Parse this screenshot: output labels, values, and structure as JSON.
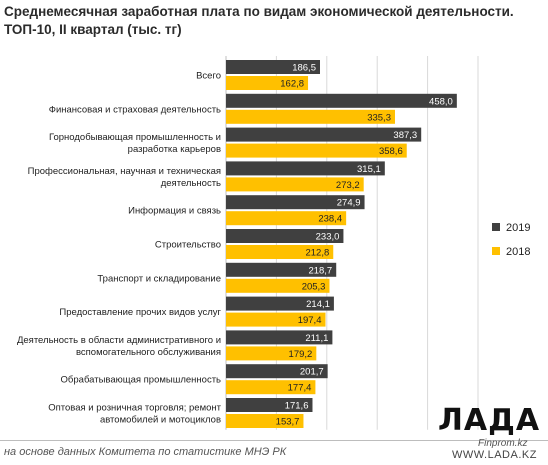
{
  "title": "Среднемесячная заработная плата  по видам экономической деятельности. ТОП-10,  II квартал (тыс.  тг)",
  "source": "на основе данных  Комитета по статистике МНЭ РК",
  "logo": {
    "name": "ЛАДА",
    "watermark": "Finprom.kz",
    "url": "WWW.LADA.KZ"
  },
  "colors": {
    "series_2019": "#404040",
    "series_2018": "#ffc000",
    "grid": "#d9d9d9"
  },
  "chart_data": {
    "type": "bar",
    "orientation": "horizontal",
    "title": "Среднемесячная заработная плата  по видам экономической деятельности. ТОП-10,  II квартал (тыс.  тг)",
    "categories": [
      [
        "Всего"
      ],
      [
        "Финансовая и страховая деятельность"
      ],
      [
        "Горнодобывающая промышленность и",
        "разработка карьеров"
      ],
      [
        "Профессиональная, научная и техническая",
        "деятельность"
      ],
      [
        "Информация и связь"
      ],
      [
        "Строительство"
      ],
      [
        "Транспорт и складирование"
      ],
      [
        "Предоставление прочих видов услуг"
      ],
      [
        "Деятельность в области административного и",
        "вспомогательного обслуживания"
      ],
      [
        "Обрабатывающая промышленность"
      ],
      [
        "Оптовая и розничная торговля; ремонт",
        "автомобилей и мотоциклов"
      ]
    ],
    "series": [
      {
        "name": "2019",
        "color": "#404040",
        "values": [
          186.5,
          458.0,
          387.3,
          315.1,
          274.9,
          233.0,
          218.7,
          214.1,
          211.1,
          201.7,
          171.6
        ],
        "labels": [
          "186,5",
          "458,0",
          "387,3",
          "315,1",
          "274,9",
          "233,0",
          "218,7",
          "214,1",
          "211,1",
          "201,7",
          "171,6"
        ]
      },
      {
        "name": "2018",
        "color": "#ffc000",
        "values": [
          162.8,
          335.3,
          358.6,
          273.2,
          238.4,
          212.8,
          205.3,
          197.4,
          179.2,
          177.4,
          153.7
        ],
        "labels": [
          "162,8",
          "335,3",
          "358,6",
          "273,2",
          "238,4",
          "212,8",
          "205,3",
          "197,4",
          "179,2",
          "177,4",
          "153,7"
        ]
      }
    ],
    "xlim": [
      0,
      500
    ],
    "grid": true,
    "legend_position": "right"
  }
}
